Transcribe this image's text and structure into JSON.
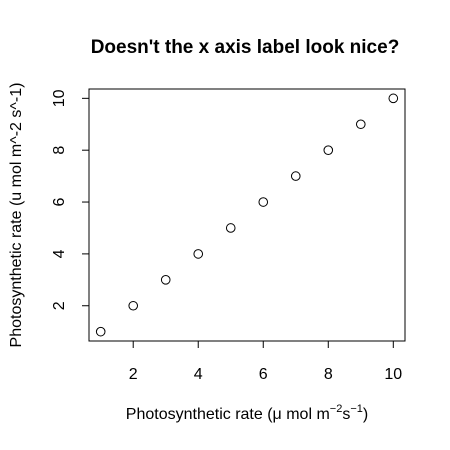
{
  "chart_data": {
    "type": "scatter",
    "title": "Doesn't the x axis label look nice?",
    "xlabel": {
      "prefix": "Photosynthetic rate (",
      "mu": "μ",
      "mid": " mol m",
      "exp1": "−2",
      "s": "s",
      "exp2": "−1",
      "suffix": ")"
    },
    "ylabel": "Photosynthetic rate (u mol m^-2 s^-1)",
    "xlim": [
      0.64,
      10.36
    ],
    "ylim": [
      0.64,
      10.36
    ],
    "xticks": [
      2,
      4,
      6,
      8,
      10
    ],
    "yticks": [
      2,
      4,
      6,
      8,
      10
    ],
    "grid": false,
    "marker": "open-circle",
    "x": [
      1,
      2,
      3,
      4,
      5,
      6,
      7,
      8,
      9,
      10
    ],
    "y": [
      1,
      2,
      3,
      4,
      5,
      6,
      7,
      8,
      9,
      10
    ]
  }
}
